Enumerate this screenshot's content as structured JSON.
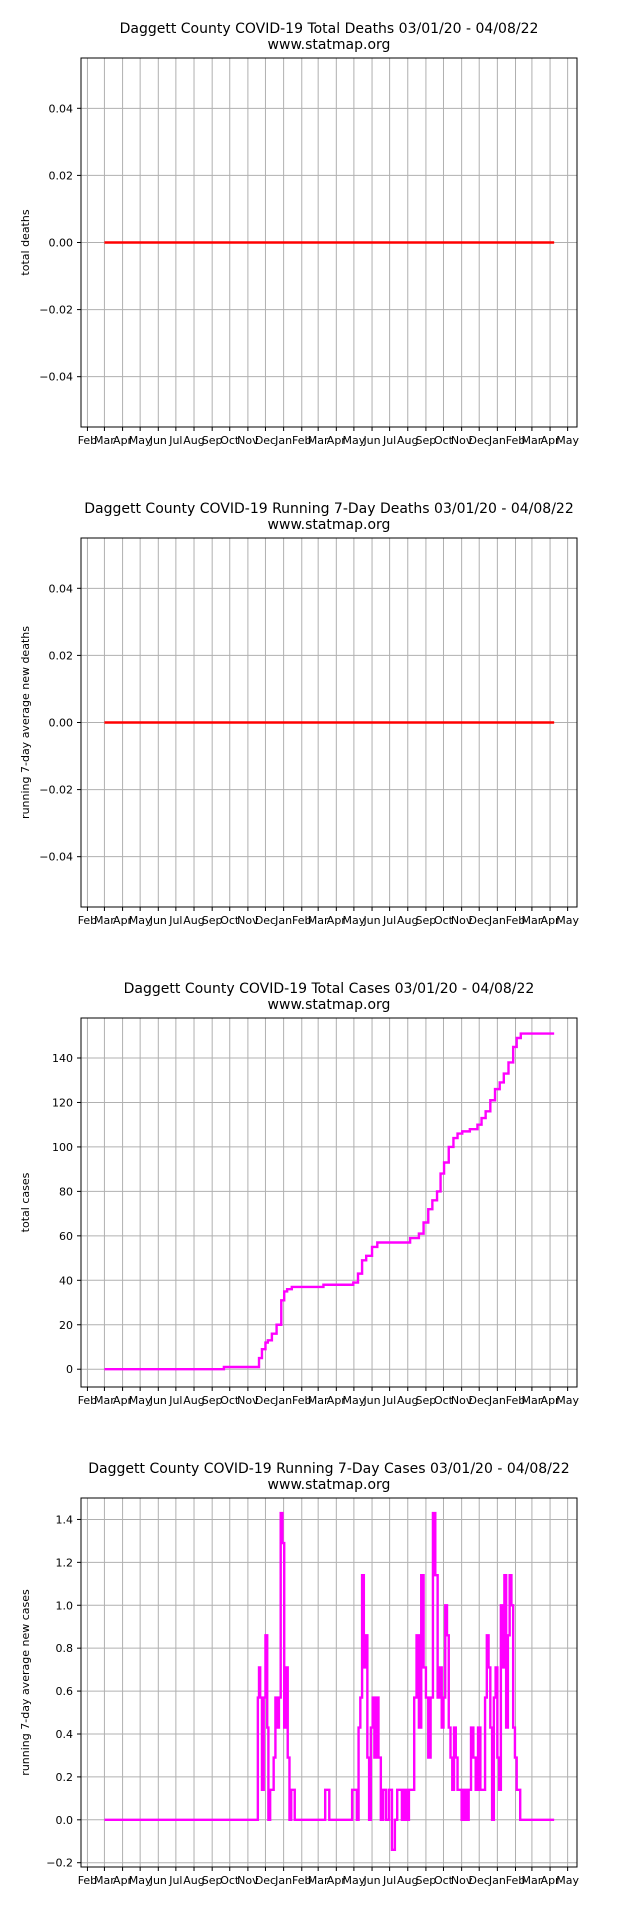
{
  "chart_data": [
    {
      "type": "line",
      "title": "Daggett County COVID-19 Total Deaths 03/01/20 - 04/08/22",
      "subtitle": "www.statmap.org",
      "ylabel": "total deaths",
      "xlabel": "",
      "color": "#ff0000",
      "ylim": [
        -0.055,
        0.055
      ],
      "yticks": [
        -0.04,
        -0.02,
        0.0,
        0.02,
        0.04
      ],
      "ytick_labels": [
        "−0.04",
        "−0.02",
        "0.00",
        "0.02",
        "0.04"
      ],
      "grid": true,
      "series": [
        {
          "x": [
            "2020-03-01",
            "2022-04-08"
          ],
          "y": [
            0,
            0
          ]
        }
      ]
    },
    {
      "type": "line",
      "title": "Daggett County COVID-19 Running 7-Day Deaths 03/01/20 - 04/08/22",
      "subtitle": "www.statmap.org",
      "ylabel": "running 7-day average new deaths",
      "xlabel": "",
      "color": "#ff0000",
      "ylim": [
        -0.055,
        0.055
      ],
      "yticks": [
        -0.04,
        -0.02,
        0.0,
        0.02,
        0.04
      ],
      "ytick_labels": [
        "−0.04",
        "−0.02",
        "0.00",
        "0.02",
        "0.04"
      ],
      "grid": true,
      "series": [
        {
          "x": [
            "2020-03-01",
            "2022-04-08"
          ],
          "y": [
            0,
            0
          ]
        }
      ]
    },
    {
      "type": "line",
      "title": "Daggett County COVID-19 Total Cases 03/01/20 - 04/08/22",
      "subtitle": "www.statmap.org",
      "ylabel": "total cases",
      "xlabel": "",
      "color": "#ff00ff",
      "ylim": [
        -8,
        158
      ],
      "yticks": [
        0,
        20,
        40,
        60,
        80,
        100,
        120,
        140
      ],
      "ytick_labels": [
        "0",
        "20",
        "40",
        "60",
        "80",
        "100",
        "120",
        "140"
      ],
      "grid": true,
      "series": [
        {
          "x": [
            "2020-03-01",
            "2020-09-20",
            "2020-09-21",
            "2020-11-15",
            "2020-11-20",
            "2020-11-25",
            "2020-12-01",
            "2020-12-05",
            "2020-12-12",
            "2020-12-20",
            "2020-12-28",
            "2021-01-02",
            "2021-01-07",
            "2021-01-15",
            "2021-01-25",
            "2021-02-10",
            "2021-03-10",
            "2021-03-25",
            "2021-04-30",
            "2021-05-08",
            "2021-05-15",
            "2021-05-22",
            "2021-06-01",
            "2021-06-10",
            "2021-06-20",
            "2021-07-05",
            "2021-07-20",
            "2021-08-05",
            "2021-08-20",
            "2021-08-28",
            "2021-09-05",
            "2021-09-12",
            "2021-09-20",
            "2021-09-26",
            "2021-10-02",
            "2021-10-10",
            "2021-10-18",
            "2021-10-25",
            "2021-11-02",
            "2021-11-15",
            "2021-11-28",
            "2021-12-05",
            "2021-12-12",
            "2021-12-20",
            "2021-12-28",
            "2022-01-05",
            "2022-01-12",
            "2022-01-20",
            "2022-01-28",
            "2022-02-03",
            "2022-02-10",
            "2022-02-18",
            "2022-03-01",
            "2022-03-15",
            "2022-04-08"
          ],
          "y": [
            0,
            0,
            1,
            1,
            5,
            9,
            12,
            13,
            16,
            20,
            31,
            35,
            36,
            37,
            37,
            37,
            38,
            38,
            39,
            43,
            49,
            51,
            55,
            57,
            57,
            57,
            57,
            59,
            61,
            66,
            72,
            76,
            80,
            88,
            93,
            100,
            104,
            106,
            107,
            108,
            110,
            113,
            116,
            121,
            126,
            129,
            133,
            138,
            145,
            149,
            151,
            151,
            151,
            151,
            151
          ]
        }
      ]
    },
    {
      "type": "line",
      "title": "Daggett County COVID-19 Running 7-Day Cases 03/01/20 - 04/08/22",
      "subtitle": "www.statmap.org",
      "ylabel": "running 7-day average new cases",
      "xlabel": "",
      "color": "#ff00ff",
      "ylim": [
        -0.22,
        1.5
      ],
      "yticks": [
        -0.2,
        0.0,
        0.2,
        0.4,
        0.6,
        0.8,
        1.0,
        1.2,
        1.4
      ],
      "ytick_labels": [
        "−0.2",
        "0.0",
        "0.2",
        "0.4",
        "0.6",
        "0.8",
        "1.0",
        "1.2",
        "1.4"
      ],
      "grid": true,
      "series": [
        {
          "x": [
            "2020-03-01",
            "2020-11-15",
            "2020-11-18",
            "2020-11-20",
            "2020-11-22",
            "2020-11-25",
            "2020-11-28",
            "2020-12-01",
            "2020-12-04",
            "2020-12-06",
            "2020-12-09",
            "2020-12-12",
            "2020-12-15",
            "2020-12-18",
            "2020-12-21",
            "2020-12-24",
            "2020-12-27",
            "2020-12-30",
            "2021-01-02",
            "2021-01-05",
            "2021-01-08",
            "2021-01-11",
            "2021-01-14",
            "2021-01-17",
            "2021-01-20",
            "2021-01-25",
            "2021-03-10",
            "2021-03-13",
            "2021-03-17",
            "2021-03-20",
            "2021-04-25",
            "2021-04-28",
            "2021-05-02",
            "2021-05-06",
            "2021-05-09",
            "2021-05-12",
            "2021-05-15",
            "2021-05-18",
            "2021-05-21",
            "2021-05-24",
            "2021-05-27",
            "2021-05-30",
            "2021-06-02",
            "2021-06-05",
            "2021-06-08",
            "2021-06-12",
            "2021-06-16",
            "2021-06-20",
            "2021-06-25",
            "2021-06-30",
            "2021-07-05",
            "2021-07-10",
            "2021-07-14",
            "2021-07-18",
            "2021-07-22",
            "2021-07-26",
            "2021-07-30",
            "2021-08-03",
            "2021-08-07",
            "2021-08-12",
            "2021-08-16",
            "2021-08-20",
            "2021-08-24",
            "2021-08-28",
            "2021-09-01",
            "2021-09-05",
            "2021-09-09",
            "2021-09-13",
            "2021-09-17",
            "2021-09-21",
            "2021-09-25",
            "2021-09-28",
            "2021-10-01",
            "2021-10-04",
            "2021-10-07",
            "2021-10-10",
            "2021-10-13",
            "2021-10-16",
            "2021-10-19",
            "2021-10-22",
            "2021-10-25",
            "2021-10-28",
            "2021-11-01",
            "2021-11-05",
            "2021-11-09",
            "2021-11-13",
            "2021-11-17",
            "2021-11-21",
            "2021-11-25",
            "2021-11-29",
            "2021-12-03",
            "2021-12-07",
            "2021-12-11",
            "2021-12-14",
            "2021-12-17",
            "2021-12-20",
            "2021-12-23",
            "2021-12-26",
            "2021-12-29",
            "2022-01-01",
            "2022-01-04",
            "2022-01-07",
            "2022-01-10",
            "2022-01-13",
            "2022-01-16",
            "2022-01-19",
            "2022-01-22",
            "2022-01-25",
            "2022-01-28",
            "2022-01-31",
            "2022-02-03",
            "2022-02-06",
            "2022-02-09",
            "2022-02-12",
            "2022-02-15",
            "2022-02-18",
            "2022-02-21",
            "2022-02-25",
            "2022-03-01",
            "2022-04-08"
          ],
          "y": [
            0,
            0,
            0.57,
            0.71,
            0.57,
            0.14,
            0.57,
            0.86,
            0.43,
            0,
            0.14,
            0.14,
            0.29,
            0.57,
            0.43,
            0.57,
            1.43,
            1.29,
            0.43,
            0.71,
            0.29,
            0,
            0.14,
            0.14,
            0,
            0,
            0,
            0.14,
            0.14,
            0,
            0,
            0.14,
            0.14,
            0,
            0.43,
            0.57,
            1.14,
            0.71,
            0.86,
            0.29,
            0,
            0.43,
            0.57,
            0.29,
            0.57,
            0.29,
            0,
            0.14,
            0,
            0.14,
            -0.14,
            0,
            0.14,
            0.14,
            0,
            0.14,
            0,
            0.14,
            0.14,
            0.57,
            0.86,
            0.43,
            1.14,
            0.71,
            0.57,
            0.29,
            0.57,
            1.43,
            1.14,
            0.57,
            0.71,
            0.43,
            0.57,
            1.0,
            0.86,
            0.43,
            0.29,
            0.14,
            0.43,
            0.29,
            0.14,
            0.14,
            0,
            0.14,
            0,
            0.14,
            0.43,
            0.29,
            0.14,
            0.43,
            0.14,
            0.14,
            0.57,
            0.86,
            0.71,
            0.43,
            0,
            0.57,
            0.71,
            0.29,
            0.14,
            1.0,
            0.71,
            1.14,
            0.43,
            0.86,
            1.14,
            1.0,
            0.43,
            0.29,
            0.14,
            0.14,
            0,
            0,
            0,
            0,
            0,
            0,
            0,
            0
          ]
        }
      ]
    }
  ],
  "x_axis": {
    "tick_dates": [
      "2020-02-01",
      "2020-03-01",
      "2020-04-01",
      "2020-05-01",
      "2020-06-01",
      "2020-07-01",
      "2020-08-01",
      "2020-09-01",
      "2020-10-01",
      "2020-11-01",
      "2020-12-01",
      "2021-01-01",
      "2021-02-01",
      "2021-03-01",
      "2021-04-01",
      "2021-05-01",
      "2021-06-01",
      "2021-07-01",
      "2021-08-01",
      "2021-09-01",
      "2021-10-01",
      "2021-11-01",
      "2021-12-01",
      "2022-01-01",
      "2022-02-01",
      "2022-03-01",
      "2022-04-01",
      "2022-05-01"
    ],
    "tick_labels": [
      "Feb",
      "Mar",
      "Apr",
      "May",
      "Jun",
      "Jul",
      "Aug",
      "Sep",
      "Oct",
      "Nov",
      "Dec",
      "Jan",
      "Feb",
      "Mar",
      "Apr",
      "May",
      "Jun",
      "Jul",
      "Aug",
      "Sep",
      "Oct",
      "Nov",
      "Dec",
      "Jan",
      "Feb",
      "Mar",
      "Apr",
      "May"
    ]
  }
}
